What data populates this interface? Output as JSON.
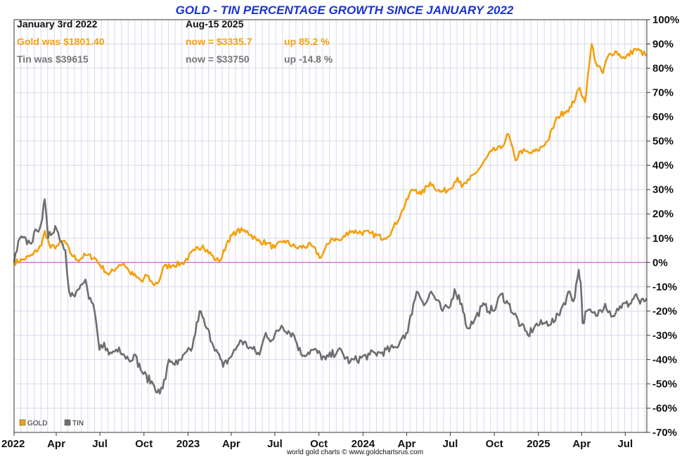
{
  "chart_data": {
    "type": "line",
    "title": "GOLD - TIN PERCENTAGE GROWTH SINCE JANUARY 2022",
    "ylim": [
      -70,
      100
    ],
    "y_ticks": [
      100,
      90,
      80,
      70,
      60,
      50,
      40,
      30,
      20,
      10,
      0,
      -10,
      -20,
      -30,
      -40,
      -50,
      -60,
      -70
    ],
    "y_tick_labels": [
      "100%",
      "90%",
      "80%",
      "70%",
      "60%",
      "50%",
      "40%",
      "30%",
      "20%",
      "10%",
      "0%",
      "-10%",
      "-20%",
      "-30%",
      "-40%",
      "-50%",
      "-60%",
      "-70%"
    ],
    "xlim": [
      "2022-01-03",
      "2025-08-15"
    ],
    "x_ticks": [
      {
        "date": "2022-01-01",
        "label": "2022"
      },
      {
        "date": "2022-04-01",
        "label": "Apr"
      },
      {
        "date": "2022-07-01",
        "label": "Jul"
      },
      {
        "date": "2022-10-01",
        "label": "Oct"
      },
      {
        "date": "2023-01-01",
        "label": "2023"
      },
      {
        "date": "2023-04-01",
        "label": "Apr"
      },
      {
        "date": "2023-07-01",
        "label": "Jul"
      },
      {
        "date": "2023-10-01",
        "label": "Oct"
      },
      {
        "date": "2024-01-01",
        "label": "2024"
      },
      {
        "date": "2024-04-01",
        "label": "Apr"
      },
      {
        "date": "2024-07-01",
        "label": "Jul"
      },
      {
        "date": "2024-10-01",
        "label": "Oct"
      },
      {
        "date": "2025-01-01",
        "label": "2025"
      },
      {
        "date": "2025-04-01",
        "label": "Apr"
      },
      {
        "date": "2025-07-01",
        "label": "Jul"
      }
    ],
    "grid": true,
    "legend_position": "bottom-left",
    "info": {
      "start_label": "January 3rd 2022",
      "end_label": "Aug-15  2025",
      "gold_was": "Gold was $1801.40",
      "gold_now": "now = $3335.7",
      "gold_up": "up 85.2 %",
      "tin_was": "Tin was $39615",
      "tin_now": "now = $33750",
      "tin_up": "up -14.8 %"
    },
    "credit": "world gold charts © www.goldchartsrus.com",
    "series": [
      {
        "name": "GOLD",
        "color": "#f5a00a",
        "points": [
          [
            "2022-01-03",
            0
          ],
          [
            "2022-01-20",
            1
          ],
          [
            "2022-02-10",
            3
          ],
          [
            "2022-03-01",
            7
          ],
          [
            "2022-03-08",
            13
          ],
          [
            "2022-03-20",
            6
          ],
          [
            "2022-04-05",
            7
          ],
          [
            "2022-04-18",
            9
          ],
          [
            "2022-04-30",
            4
          ],
          [
            "2022-05-15",
            1
          ],
          [
            "2022-06-01",
            3
          ],
          [
            "2022-06-20",
            2
          ],
          [
            "2022-07-01",
            -1
          ],
          [
            "2022-07-20",
            -5
          ],
          [
            "2022-08-10",
            -1
          ],
          [
            "2022-08-20",
            -0.5
          ],
          [
            "2022-09-01",
            -4
          ],
          [
            "2022-09-15",
            -6
          ],
          [
            "2022-09-28",
            -8
          ],
          [
            "2022-10-04",
            -5
          ],
          [
            "2022-10-20",
            -9
          ],
          [
            "2022-11-01",
            -8
          ],
          [
            "2022-11-10",
            -2
          ],
          [
            "2022-12-01",
            -1
          ],
          [
            "2022-12-20",
            -0.5
          ],
          [
            "2023-01-15",
            5
          ],
          [
            "2023-02-01",
            7
          ],
          [
            "2023-02-28",
            1
          ],
          [
            "2023-03-10",
            1
          ],
          [
            "2023-03-25",
            9
          ],
          [
            "2023-04-13",
            13
          ],
          [
            "2023-05-04",
            13
          ],
          [
            "2023-05-25",
            9
          ],
          [
            "2023-06-15",
            8
          ],
          [
            "2023-07-01",
            6
          ],
          [
            "2023-07-20",
            9
          ],
          [
            "2023-08-15",
            6
          ],
          [
            "2023-09-15",
            7
          ],
          [
            "2023-10-05",
            2
          ],
          [
            "2023-10-27",
            10
          ],
          [
            "2023-11-15",
            9
          ],
          [
            "2023-12-04",
            13
          ],
          [
            "2024-01-15",
            12
          ],
          [
            "2024-02-14",
            10
          ],
          [
            "2024-03-01",
            13
          ],
          [
            "2024-03-20",
            20
          ],
          [
            "2024-04-12",
            30
          ],
          [
            "2024-04-20",
            30
          ],
          [
            "2024-05-01",
            28
          ],
          [
            "2024-05-20",
            33
          ],
          [
            "2024-06-10",
            29
          ],
          [
            "2024-06-28",
            30
          ],
          [
            "2024-07-16",
            35
          ],
          [
            "2024-07-25",
            31
          ],
          [
            "2024-08-10",
            34
          ],
          [
            "2024-09-01",
            39
          ],
          [
            "2024-09-26",
            46
          ],
          [
            "2024-10-15",
            47
          ],
          [
            "2024-10-30",
            53
          ],
          [
            "2024-11-14",
            42
          ],
          [
            "2024-11-25",
            46
          ],
          [
            "2024-12-15",
            45
          ],
          [
            "2024-12-30",
            46
          ],
          [
            "2025-01-20",
            50
          ],
          [
            "2025-02-10",
            60
          ],
          [
            "2025-02-24",
            62
          ],
          [
            "2025-03-10",
            64
          ],
          [
            "2025-03-28",
            72
          ],
          [
            "2025-04-08",
            66
          ],
          [
            "2025-04-16",
            80
          ],
          [
            "2025-04-22",
            90
          ],
          [
            "2025-05-01",
            82
          ],
          [
            "2025-05-15",
            78
          ],
          [
            "2025-05-26",
            85
          ],
          [
            "2025-06-10",
            87
          ],
          [
            "2025-06-30",
            84
          ],
          [
            "2025-07-22",
            88
          ],
          [
            "2025-08-15",
            85.2
          ]
        ]
      },
      {
        "name": "TIN",
        "color": "#6e6e6e",
        "points": [
          [
            "2022-01-03",
            0
          ],
          [
            "2022-01-15",
            10
          ],
          [
            "2022-02-05",
            8
          ],
          [
            "2022-02-20",
            13
          ],
          [
            "2022-03-03",
            18
          ],
          [
            "2022-03-08",
            26
          ],
          [
            "2022-03-15",
            10
          ],
          [
            "2022-03-30",
            15
          ],
          [
            "2022-04-20",
            5
          ],
          [
            "2022-04-28",
            -12
          ],
          [
            "2022-05-10",
            -14
          ],
          [
            "2022-05-25",
            -9
          ],
          [
            "2022-06-01",
            -7
          ],
          [
            "2022-06-08",
            -15
          ],
          [
            "2022-06-20",
            -20
          ],
          [
            "2022-06-30",
            -36
          ],
          [
            "2022-07-10",
            -33
          ],
          [
            "2022-07-20",
            -38
          ],
          [
            "2022-08-10",
            -35
          ],
          [
            "2022-08-30",
            -40
          ],
          [
            "2022-09-10",
            -38
          ],
          [
            "2022-09-30",
            -46
          ],
          [
            "2022-10-20",
            -50
          ],
          [
            "2022-11-03",
            -54
          ],
          [
            "2022-11-15",
            -48
          ],
          [
            "2022-11-22",
            -40
          ],
          [
            "2022-12-10",
            -42
          ],
          [
            "2023-01-10",
            -35
          ],
          [
            "2023-01-25",
            -20
          ],
          [
            "2023-02-08",
            -27
          ],
          [
            "2023-03-01",
            -36
          ],
          [
            "2023-03-15",
            -43
          ],
          [
            "2023-04-10",
            -36
          ],
          [
            "2023-04-20",
            -32
          ],
          [
            "2023-05-10",
            -35
          ],
          [
            "2023-05-30",
            -38
          ],
          [
            "2023-06-12",
            -29
          ],
          [
            "2023-06-25",
            -32
          ],
          [
            "2023-07-15",
            -26
          ],
          [
            "2023-08-10",
            -30
          ],
          [
            "2023-08-25",
            -38
          ],
          [
            "2023-09-20",
            -36
          ],
          [
            "2023-10-15",
            -40
          ],
          [
            "2023-11-10",
            -36
          ],
          [
            "2023-12-05",
            -41
          ],
          [
            "2024-01-15",
            -38
          ],
          [
            "2024-02-10",
            -37
          ],
          [
            "2024-03-10",
            -35
          ],
          [
            "2024-03-25",
            -30
          ],
          [
            "2024-04-03",
            -29
          ],
          [
            "2024-04-15",
            -17
          ],
          [
            "2024-04-22",
            -12
          ],
          [
            "2024-05-10",
            -17
          ],
          [
            "2024-05-22",
            -12
          ],
          [
            "2024-06-15",
            -20
          ],
          [
            "2024-07-01",
            -18
          ],
          [
            "2024-07-10",
            -11
          ],
          [
            "2024-07-25",
            -17
          ],
          [
            "2024-08-05",
            -27
          ],
          [
            "2024-08-20",
            -24
          ],
          [
            "2024-09-05",
            -18
          ],
          [
            "2024-09-30",
            -20
          ],
          [
            "2024-10-15",
            -13
          ],
          [
            "2024-10-30",
            -17
          ],
          [
            "2024-11-25",
            -26
          ],
          [
            "2024-12-10",
            -30
          ],
          [
            "2024-12-25",
            -26
          ],
          [
            "2025-01-15",
            -25
          ],
          [
            "2025-02-05",
            -24
          ],
          [
            "2025-02-20",
            -18
          ],
          [
            "2025-03-07",
            -12
          ],
          [
            "2025-03-15",
            -16
          ],
          [
            "2025-03-26",
            -3
          ],
          [
            "2025-03-30",
            -8
          ],
          [
            "2025-04-03",
            -25
          ],
          [
            "2025-04-12",
            -20
          ],
          [
            "2025-05-01",
            -22
          ],
          [
            "2025-05-20",
            -17
          ],
          [
            "2025-06-05",
            -22
          ],
          [
            "2025-06-20",
            -18
          ],
          [
            "2025-07-10",
            -17
          ],
          [
            "2025-07-24",
            -13
          ],
          [
            "2025-08-01",
            -17
          ],
          [
            "2025-08-15",
            -14.8
          ]
        ]
      }
    ],
    "zero_line_color": "#cc44cc"
  }
}
